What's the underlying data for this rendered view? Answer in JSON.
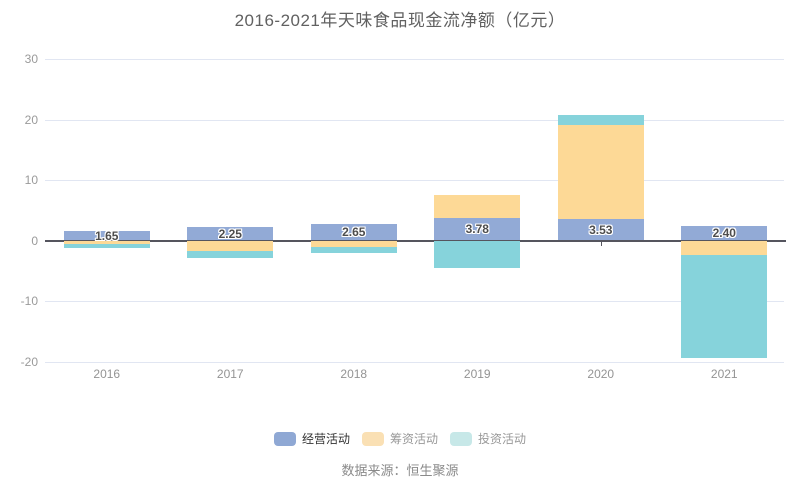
{
  "source": "数据来源：恒生聚源",
  "legend": {
    "items": [
      {
        "label": "经营活动",
        "swatch_color": "#8FA8D4",
        "label_color": "#333333"
      },
      {
        "label": "筹资活动",
        "swatch_color": "#FAE0B4",
        "label_color": "#999999"
      },
      {
        "label": "投资活动",
        "swatch_color": "#C7E8E8",
        "label_color": "#999999"
      }
    ]
  },
  "chart_data": {
    "type": "bar",
    "stacked": true,
    "title": "2016-2021年天味食品现金流净额（亿元）",
    "xlabel": "",
    "ylabel": "亿元",
    "categories": [
      "2016",
      "2017",
      "2018",
      "2019",
      "2020",
      "2021"
    ],
    "series": [
      {
        "name": "经营活动",
        "color": "#92AAD6",
        "values": [
          1.65,
          2.25,
          2.65,
          3.78,
          3.53,
          2.4
        ],
        "labeled": true
      },
      {
        "name": "筹资活动",
        "color": "#FDD996",
        "values": [
          -0.5,
          -1.7,
          -1.1,
          3.74,
          15.6,
          -2.33
        ],
        "labeled": false
      },
      {
        "name": "投资活动",
        "color": "#86D3DB",
        "values": [
          -0.7,
          -1.2,
          -0.95,
          -4.6,
          1.6,
          -17.15
        ],
        "labeled": false
      }
    ],
    "ylim": [
      -20,
      30
    ],
    "yticks": [
      30,
      20,
      10,
      0,
      -10,
      -20
    ],
    "grid": true,
    "legend_position": "bottom",
    "label_format": "2-decimals",
    "colors": {
      "grid_line": "#E1E6F2",
      "zero_axis": "#55555e",
      "axis_label": "#9a9a9a",
      "value_label": "#4d4d4d"
    }
  }
}
